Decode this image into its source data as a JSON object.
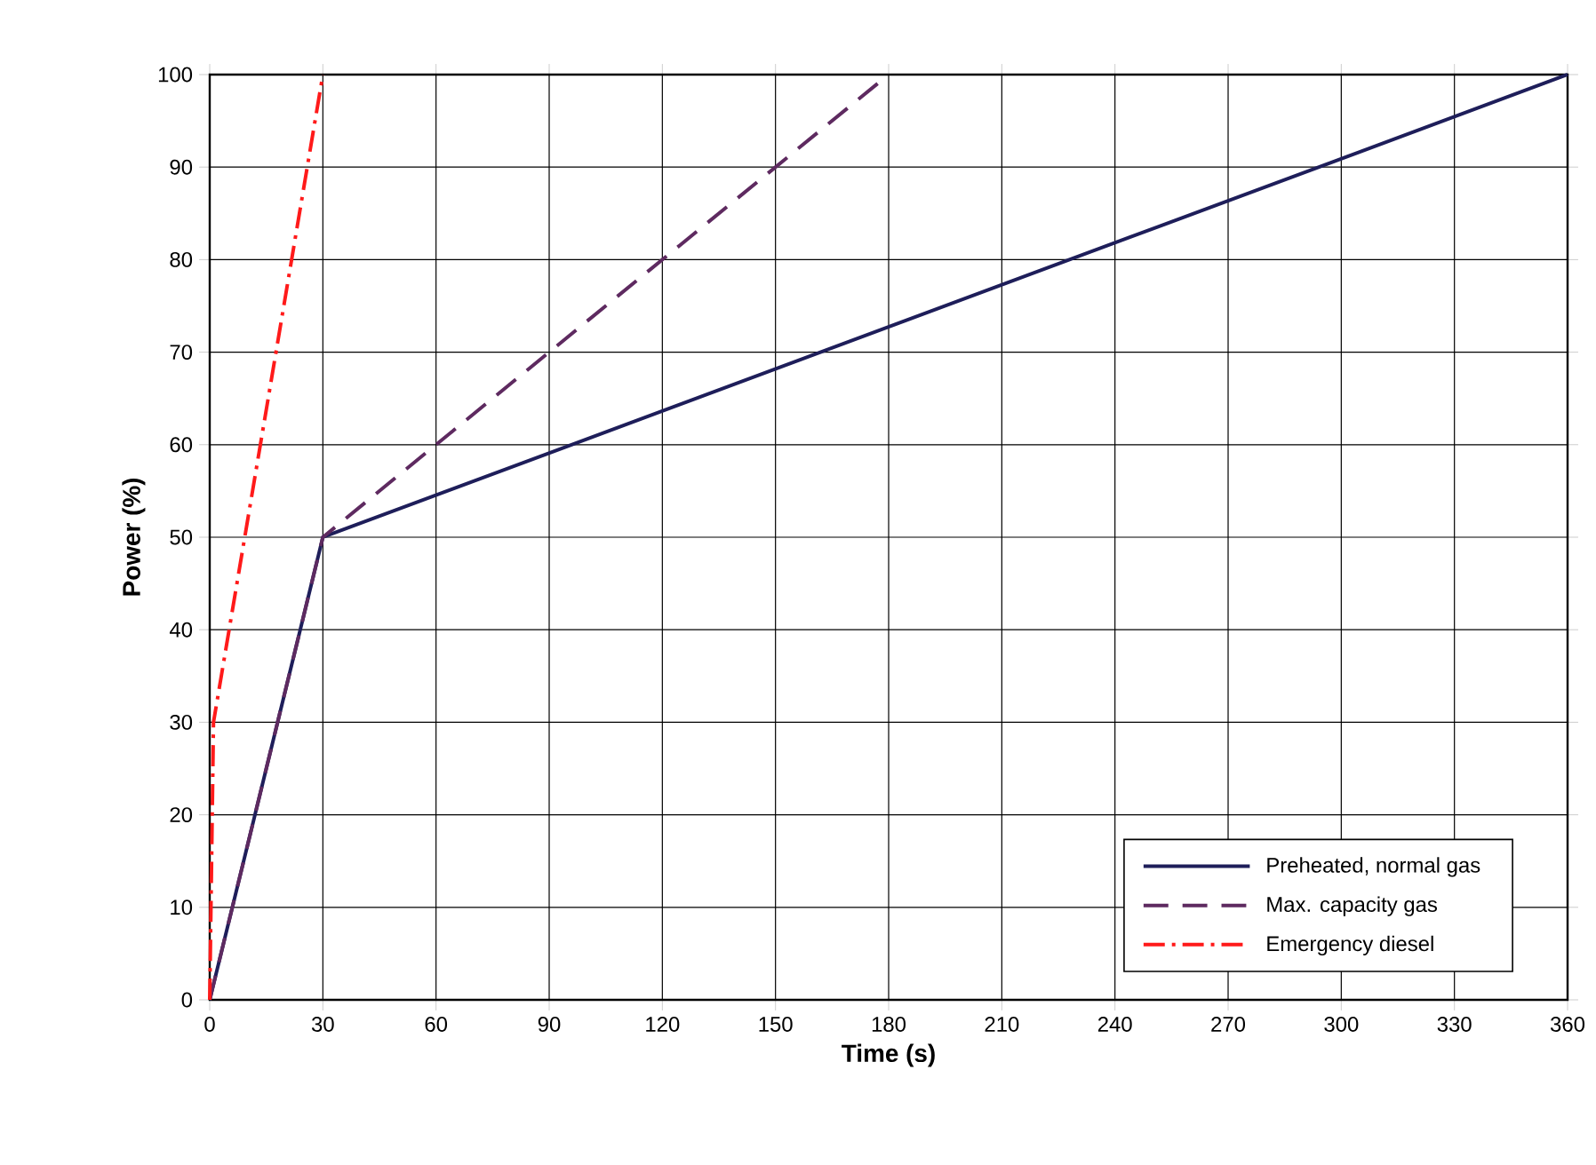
{
  "chart_data": {
    "type": "line",
    "xlabel": "Time (s)",
    "ylabel": "Power (%)",
    "xlim": [
      0,
      360
    ],
    "xticks": [
      0,
      30,
      60,
      90,
      120,
      150,
      180,
      210,
      240,
      270,
      300,
      330,
      360
    ],
    "ylim": [
      0,
      100
    ],
    "yticks": [
      0,
      10,
      20,
      30,
      40,
      50,
      60,
      70,
      80,
      90,
      100
    ],
    "grid": true,
    "legend": "bottom right",
    "series": [
      {
        "name": "Preheated, normal gas",
        "color": "#1e1e5a",
        "line_style": "solid",
        "x": [
          0,
          30,
          360
        ],
        "values": [
          0,
          50,
          100
        ]
      },
      {
        "name": "Max. capacity gas",
        "color": "#5e2a60",
        "line_style": "dashed",
        "x": [
          0,
          30,
          180
        ],
        "values": [
          0,
          50,
          100
        ]
      },
      {
        "name": "Emergency diesel",
        "color": "#ff1a1a",
        "line_style": "dashdot",
        "x": [
          0,
          1,
          30
        ],
        "values": [
          0,
          30,
          100
        ]
      }
    ]
  }
}
